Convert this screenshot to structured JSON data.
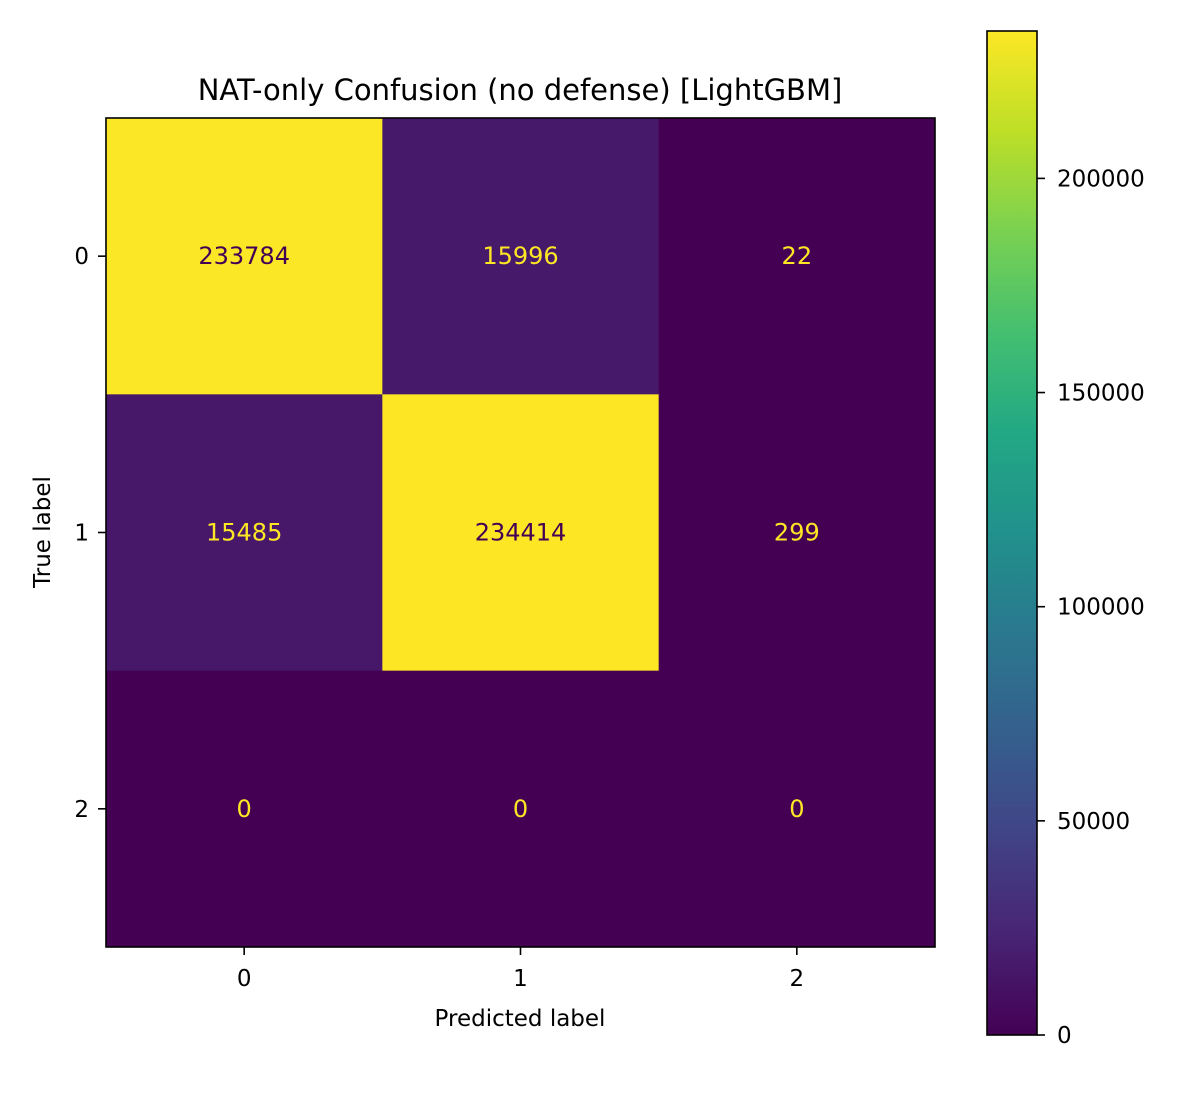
{
  "chart_data": {
    "type": "heatmap",
    "title": "NAT-only Confusion (no defense) [LightGBM]",
    "xlabel": "Predicted label",
    "ylabel": "True label",
    "x_categories": [
      "0",
      "1",
      "2"
    ],
    "y_categories": [
      "0",
      "1",
      "2"
    ],
    "matrix": [
      [
        233784,
        15996,
        22
      ],
      [
        15485,
        234414,
        299
      ],
      [
        0,
        0,
        0
      ]
    ],
    "colormap": "viridis",
    "colorbar": {
      "range": [
        0,
        234414
      ],
      "ticks": [
        0,
        50000,
        100000,
        150000,
        200000
      ],
      "tick_labels": [
        "0",
        "50000",
        "100000",
        "150000",
        "200000"
      ]
    },
    "text_colors": {
      "on_dark": "#fde725",
      "on_light": "#440154"
    }
  }
}
